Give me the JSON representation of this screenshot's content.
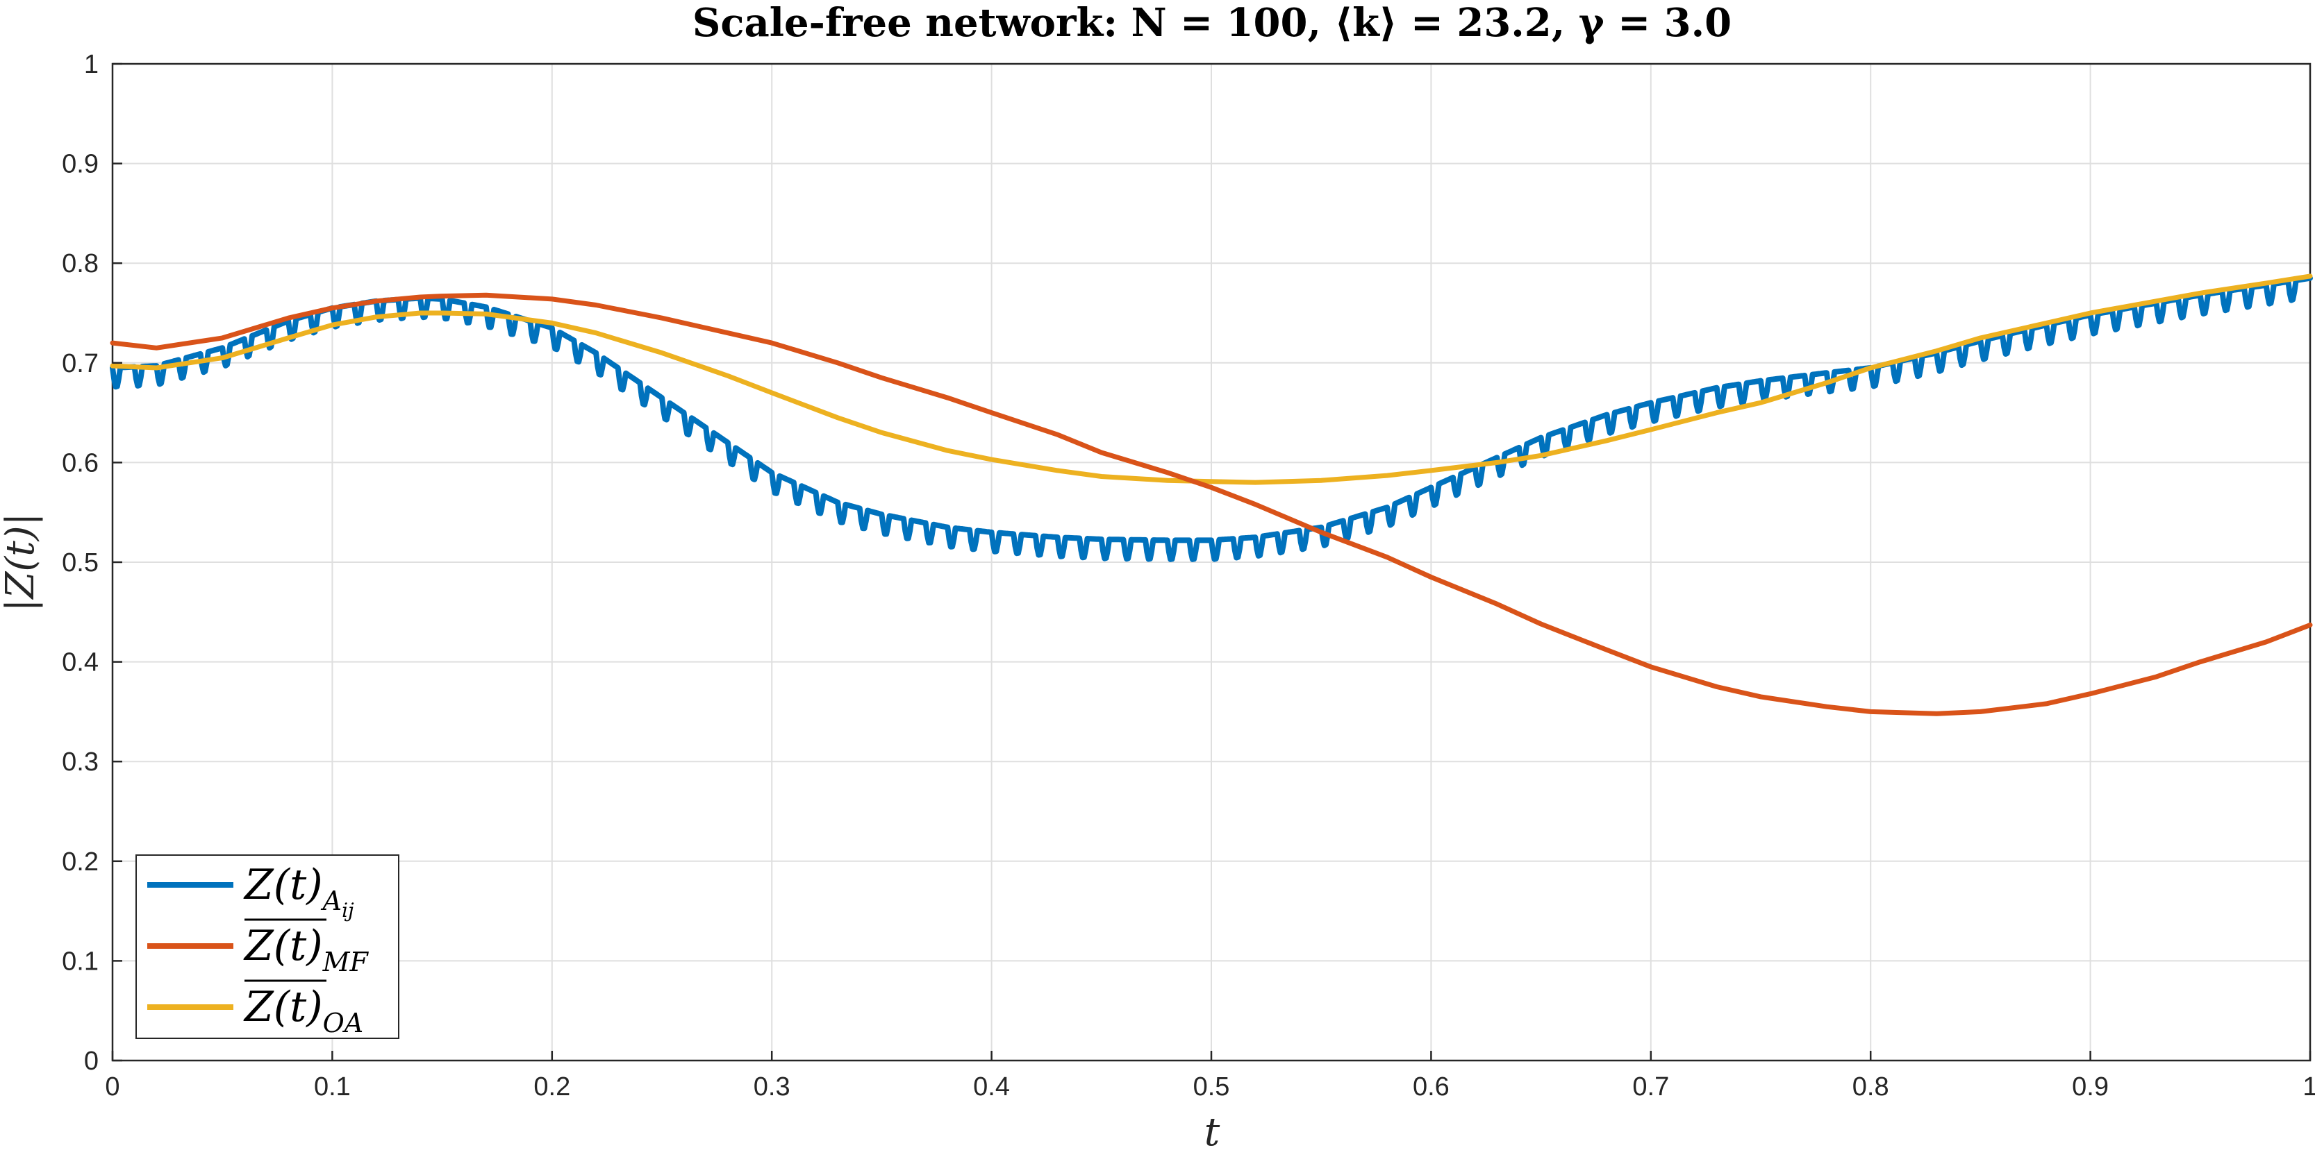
{
  "chart_data": {
    "type": "line",
    "title": "Scale-free network: N = 100, ⟨k⟩ = 23.2, γ = 3.0",
    "xlabel": "t",
    "ylabel": "|Z(t)|",
    "xlim": [
      0,
      1
    ],
    "ylim": [
      0,
      1
    ],
    "grid": true,
    "legend_position": "bottom-left",
    "x_ticks": [
      "0",
      "0.1",
      "0.2",
      "0.3",
      "0.4",
      "0.5",
      "0.6",
      "0.7",
      "0.8",
      "0.9",
      "1"
    ],
    "y_ticks": [
      "0",
      "0.1",
      "0.2",
      "0.3",
      "0.4",
      "0.5",
      "0.6",
      "0.7",
      "0.8",
      "0.9",
      "1"
    ],
    "x": [
      0,
      0.02,
      0.05,
      0.08,
      0.1,
      0.12,
      0.14,
      0.15,
      0.17,
      0.2,
      0.22,
      0.25,
      0.28,
      0.3,
      0.33,
      0.35,
      0.38,
      0.4,
      0.43,
      0.45,
      0.48,
      0.5,
      0.52,
      0.55,
      0.58,
      0.6,
      0.63,
      0.65,
      0.68,
      0.7,
      0.73,
      0.75,
      0.78,
      0.8,
      0.83,
      0.85,
      0.88,
      0.9,
      0.93,
      0.95,
      0.98,
      1.0
    ],
    "series": [
      {
        "name": "Z(t)_{A_ij}",
        "color": "#0072BD",
        "ripple_amplitude": 0.02,
        "ripple_count": 100,
        "values": [
          0.695,
          0.697,
          0.715,
          0.742,
          0.755,
          0.762,
          0.765,
          0.764,
          0.756,
          0.735,
          0.71,
          0.665,
          0.62,
          0.59,
          0.56,
          0.548,
          0.535,
          0.53,
          0.525,
          0.523,
          0.522,
          0.522,
          0.525,
          0.535,
          0.555,
          0.575,
          0.605,
          0.625,
          0.648,
          0.66,
          0.675,
          0.682,
          0.69,
          0.695,
          0.71,
          0.722,
          0.738,
          0.748,
          0.76,
          0.768,
          0.778,
          0.785
        ]
      },
      {
        "name": "Z(t)_MF",
        "color": "#D95319",
        "values": [
          0.72,
          0.715,
          0.725,
          0.745,
          0.755,
          0.762,
          0.766,
          0.767,
          0.768,
          0.764,
          0.758,
          0.745,
          0.73,
          0.72,
          0.7,
          0.685,
          0.665,
          0.65,
          0.628,
          0.61,
          0.59,
          0.575,
          0.558,
          0.53,
          0.505,
          0.485,
          0.458,
          0.438,
          0.412,
          0.395,
          0.375,
          0.365,
          0.355,
          0.35,
          0.348,
          0.35,
          0.358,
          0.368,
          0.385,
          0.4,
          0.42,
          0.437
        ]
      },
      {
        "name": "Z(t)_OA",
        "color": "#EDB120",
        "values": [
          0.697,
          0.695,
          0.705,
          0.725,
          0.738,
          0.746,
          0.75,
          0.75,
          0.749,
          0.74,
          0.73,
          0.71,
          0.687,
          0.67,
          0.645,
          0.63,
          0.612,
          0.603,
          0.592,
          0.586,
          0.582,
          0.581,
          0.58,
          0.582,
          0.587,
          0.592,
          0.6,
          0.607,
          0.622,
          0.633,
          0.65,
          0.66,
          0.68,
          0.695,
          0.712,
          0.725,
          0.74,
          0.75,
          0.762,
          0.77,
          0.78,
          0.787
        ]
      }
    ],
    "legend": [
      {
        "base": "Z(t)",
        "sub": "A",
        "subsub": "ij",
        "overline": false
      },
      {
        "base": "Z(t)",
        "sub": "MF",
        "subsub": "",
        "overline": true
      },
      {
        "base": "Z(t)",
        "sub": "OA",
        "subsub": "",
        "overline": true
      }
    ]
  }
}
